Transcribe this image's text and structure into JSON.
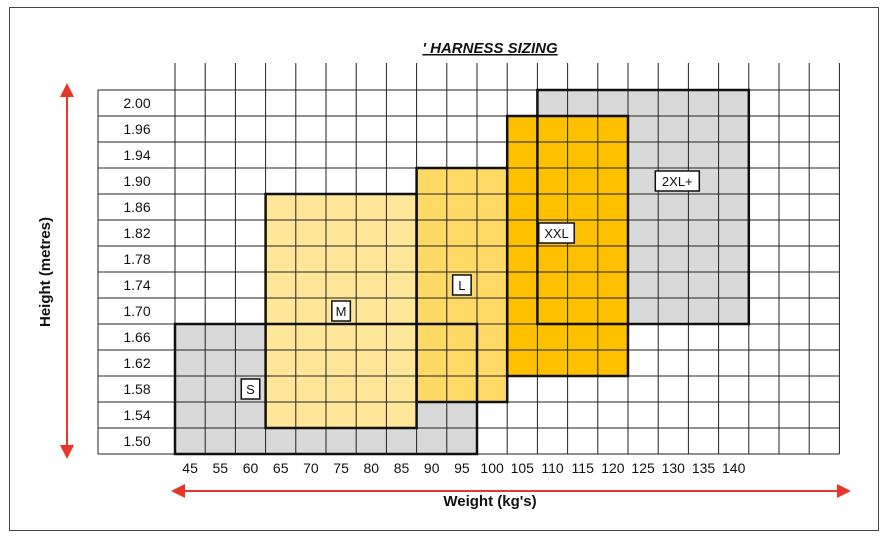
{
  "chart_data": {
    "type": "heatmap",
    "title": "' HARNESS SIZING",
    "xlabel": "Weight (kg's)",
    "ylabel": "Height (metres)",
    "x_ticks": [
      "45",
      "55",
      "60",
      "65",
      "70",
      "75",
      "80",
      "85",
      "90",
      "95",
      "100",
      "105",
      "110",
      "115",
      "120",
      "125",
      "130",
      "135",
      "140"
    ],
    "y_ticks": [
      "2.00",
      "1.96",
      "1.94",
      "1.90",
      "1.86",
      "1.82",
      "1.78",
      "1.74",
      "1.70",
      "1.66",
      "1.62",
      "1.58",
      "1.54",
      "1.50"
    ],
    "grid": true,
    "zones": [
      {
        "name": "S",
        "label": "S",
        "x_from": "45",
        "x_to": "95",
        "y_from": "1.50",
        "y_to": "1.66",
        "color": "#d9d9d9"
      },
      {
        "name": "M",
        "label": "M",
        "x_from": "65",
        "x_to": "85",
        "y_from": "1.54",
        "y_to": "1.86",
        "color": "#ffe699"
      },
      {
        "name": "L",
        "label": "L",
        "x_from": "90",
        "x_to": "100",
        "y_from": "1.58",
        "y_to": "1.90",
        "color": "#ffd966"
      },
      {
        "name": "2XL+",
        "label": "2XL+",
        "x_from": "110",
        "x_to": "140",
        "y_from": "1.70",
        "y_to": "2.00",
        "color": "#d9d9d9"
      },
      {
        "name": "XXL",
        "label": "XXL",
        "x_from": "105",
        "x_to": "120",
        "y_from": "1.62",
        "y_to": "1.96",
        "color": "#ffc000"
      }
    ],
    "arrow_color": "#e8372a"
  }
}
